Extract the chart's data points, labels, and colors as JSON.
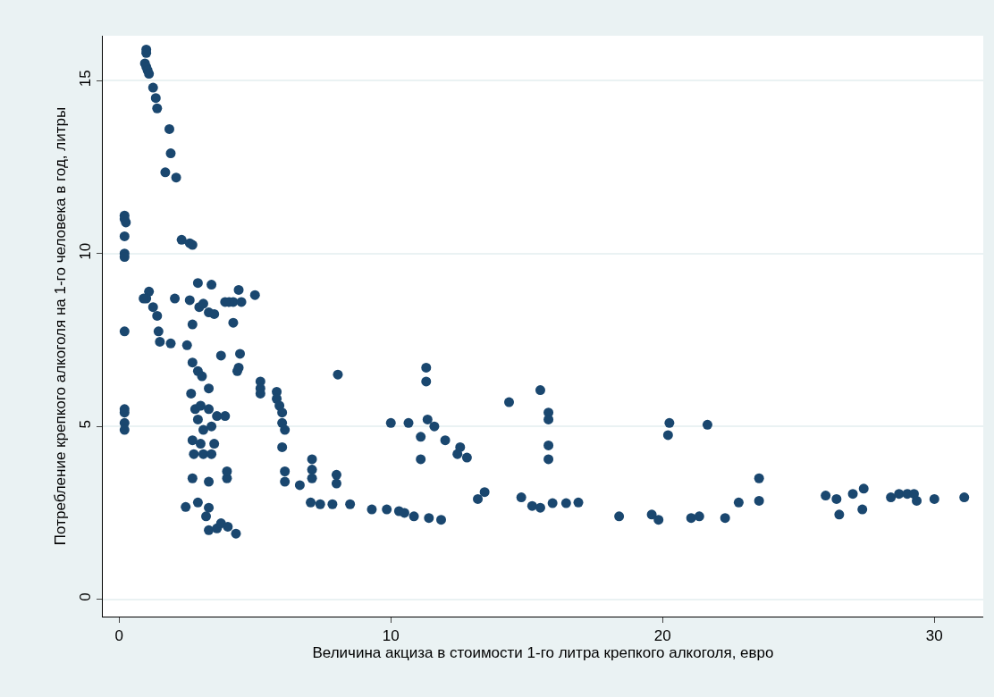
{
  "chart_data": {
    "type": "scatter",
    "xlabel": "Величина акциза в стоимости 1-го литра крепкого алкоголя, евро",
    "ylabel": "Потребление крепкого алкоголя на 1-го человека в год, литры",
    "xlim": [
      -0.6,
      31.8
    ],
    "ylim": [
      -0.5,
      16.3
    ],
    "xticks": [
      0,
      10,
      20,
      30
    ],
    "yticks": [
      0,
      5,
      10,
      15
    ],
    "grid": "y",
    "marker": "circle",
    "series": [
      {
        "color": "#1a476f",
        "x": [
          0.2,
          0.2,
          0.25,
          0.2,
          0.2,
          0.2,
          0.2,
          0.2,
          0.2,
          0.2,
          0.2,
          1.0,
          1.0,
          0.95,
          1.0,
          1.05,
          1.1,
          1.25,
          1.35,
          1.4,
          1.85,
          1.9,
          1.7,
          2.1,
          2.3,
          2.6,
          2.7,
          2.9,
          1.1,
          1.0,
          0.9,
          1.25,
          1.4,
          1.45,
          1.5,
          1.9,
          2.05,
          2.6,
          2.95,
          3.3,
          3.1,
          3.5,
          3.4,
          4.4,
          4.2,
          4.05,
          3.9,
          4.5,
          5.0,
          2.7,
          4.2,
          2.5,
          3.75,
          4.45,
          4.4,
          4.35,
          2.7,
          2.9,
          3.05,
          3.3,
          2.65,
          2.8,
          3.0,
          3.3,
          3.6,
          3.9,
          2.9,
          3.1,
          3.4,
          2.7,
          3.0,
          3.5,
          2.75,
          3.1,
          3.4,
          2.7,
          3.3,
          3.97,
          3.97,
          2.45,
          2.9,
          3.3,
          3.2,
          3.3,
          3.6,
          3.75,
          4.0,
          4.3,
          5.2,
          5.2,
          5.2,
          5.8,
          5.8,
          5.9,
          6.0,
          6.0,
          6.1,
          6.0,
          6.1,
          6.1,
          6.65,
          7.1,
          7.1,
          7.1,
          8.0,
          8.0,
          8.05,
          7.05,
          7.4,
          7.85,
          8.5,
          9.3,
          9.85,
          10.3,
          10.5,
          10.85,
          11.4,
          11.85,
          10.0,
          10.65,
          11.35,
          11.6,
          11.1,
          11.1,
          12.0,
          12.55,
          12.8,
          12.45,
          11.3,
          11.3,
          13.2,
          13.45,
          14.35,
          15.5,
          15.8,
          15.8,
          15.8,
          15.8,
          14.8,
          15.2,
          15.5,
          15.95,
          16.45,
          16.9,
          18.4,
          19.6,
          19.85,
          21.05,
          21.35,
          22.3,
          22.8,
          23.55,
          23.55,
          20.25,
          20.2,
          21.65,
          26.0,
          26.4,
          26.5,
          27.0,
          27.4,
          27.35,
          28.4,
          28.7,
          29.0,
          29.25,
          29.35,
          30.0,
          31.1
        ],
        "values": [
          11.1,
          11.0,
          10.9,
          10.5,
          10.0,
          9.9,
          7.75,
          5.5,
          5.4,
          5.1,
          4.9,
          15.9,
          15.8,
          15.5,
          15.4,
          15.3,
          15.2,
          14.8,
          14.5,
          14.2,
          13.6,
          12.9,
          12.35,
          12.2,
          10.4,
          10.3,
          10.25,
          9.15,
          8.9,
          8.7,
          8.7,
          8.45,
          8.2,
          7.75,
          7.45,
          7.4,
          8.7,
          8.65,
          8.45,
          8.3,
          8.55,
          8.25,
          9.1,
          8.95,
          8.6,
          8.6,
          8.6,
          8.6,
          8.8,
          7.95,
          8.0,
          7.35,
          7.05,
          7.1,
          6.7,
          6.6,
          6.85,
          6.6,
          6.45,
          6.1,
          5.95,
          5.5,
          5.6,
          5.5,
          5.3,
          5.3,
          5.2,
          4.9,
          5.0,
          4.6,
          4.5,
          4.5,
          4.2,
          4.2,
          4.2,
          3.5,
          3.4,
          3.5,
          3.7,
          2.67,
          2.8,
          2.65,
          2.4,
          2.0,
          2.05,
          2.2,
          2.1,
          1.9,
          6.3,
          6.1,
          5.95,
          6.0,
          5.8,
          5.6,
          5.4,
          5.1,
          4.9,
          4.4,
          3.7,
          3.4,
          3.3,
          4.05,
          3.75,
          3.5,
          3.6,
          3.35,
          6.5,
          2.8,
          2.75,
          2.75,
          2.75,
          2.6,
          2.6,
          2.55,
          2.5,
          2.4,
          2.35,
          2.3,
          5.1,
          5.1,
          5.2,
          5.0,
          4.7,
          4.05,
          4.6,
          4.4,
          4.1,
          4.2,
          6.7,
          6.3,
          2.9,
          3.1,
          5.7,
          6.05,
          5.4,
          5.2,
          4.45,
          4.05,
          2.95,
          2.7,
          2.65,
          2.78,
          2.78,
          2.8,
          2.4,
          2.45,
          2.3,
          2.35,
          2.4,
          2.35,
          2.8,
          2.85,
          3.5,
          5.1,
          4.75,
          5.05,
          3.0,
          2.9,
          2.45,
          3.05,
          3.2,
          2.6,
          2.95,
          3.05,
          3.05,
          3.05,
          2.85,
          2.9,
          2.95
        ]
      }
    ]
  }
}
